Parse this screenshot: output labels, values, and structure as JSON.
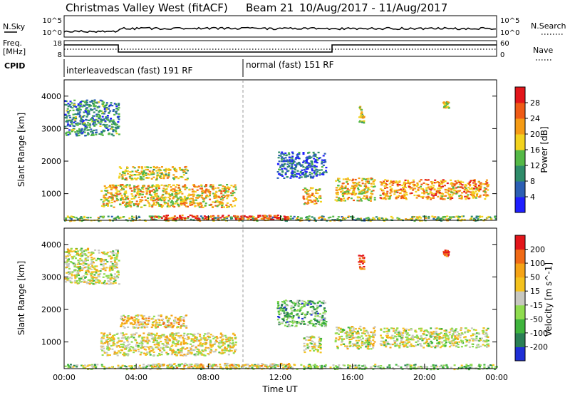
{
  "header": {
    "title": "Christmas Valley West (fitACF)",
    "beam": "Beam 21",
    "date_range": "10/Aug/2017 - 11/Aug/2017"
  },
  "top_panels": {
    "nsky_label": "N.Sky",
    "nsky_ticks": [
      "10^5",
      "10^0"
    ],
    "nsearch_label": "N.Search",
    "nsearch_ticks": [
      "10^5",
      "10^0"
    ],
    "freq_label_1": "Freq.",
    "freq_label_2": "[MHz]",
    "freq_ticks": [
      "18",
      "8"
    ],
    "nave_label": "Nave",
    "nave_ticks": [
      "60",
      "0"
    ],
    "cpid_label": "CPID",
    "cpid_modes": [
      {
        "text": "interleavedscan (fast) 191 RF",
        "start_hour": 0
      },
      {
        "text": "normal (fast) 151 RF",
        "start_hour": 10
      }
    ]
  },
  "x_ticks": [
    "00:00",
    "04:00",
    "08:00",
    "12:00",
    "16:00",
    "20:00",
    "00:00"
  ],
  "xlabel": "Time UT",
  "chart_data": [
    {
      "type": "heatmap",
      "ylabel": "Slant Range [km]",
      "y_ticks": [
        "4000",
        "3000",
        "2000",
        "1000"
      ],
      "xlim": [
        0,
        24
      ],
      "ylim": [
        180,
        4500
      ],
      "colorbar": {
        "label": "Power [dB]",
        "ticks": [
          "28",
          "24",
          "20",
          "16",
          "12",
          "8",
          "4"
        ],
        "colors": [
          "#1f1fff",
          "#2c5fb4",
          "#2f8c6a",
          "#55b947",
          "#f2d21e",
          "#f59b15",
          "#ef5b16",
          "#e3161b"
        ]
      },
      "regions": [
        {
          "x0": 0.0,
          "x1": 24.0,
          "y0": 180,
          "y1": 330,
          "level": 0.45
        },
        {
          "x0": 4.8,
          "x1": 12.5,
          "y0": 220,
          "y1": 360,
          "level": 0.9
        },
        {
          "x0": 2.0,
          "x1": 9.5,
          "y0": 600,
          "y1": 1300,
          "level": 0.6
        },
        {
          "x0": 3.0,
          "x1": 6.8,
          "y0": 1450,
          "y1": 1850,
          "level": 0.55
        },
        {
          "x0": 0.0,
          "x1": 3.0,
          "y0": 2800,
          "y1": 3900,
          "level": 0.3
        },
        {
          "x0": 11.8,
          "x1": 14.5,
          "y0": 1500,
          "y1": 2300,
          "level": 0.2
        },
        {
          "x0": 13.2,
          "x1": 14.2,
          "y0": 700,
          "y1": 1200,
          "level": 0.65
        },
        {
          "x0": 15.0,
          "x1": 17.2,
          "y0": 800,
          "y1": 1500,
          "level": 0.6
        },
        {
          "x0": 17.5,
          "x1": 23.5,
          "y0": 850,
          "y1": 1450,
          "level": 0.7
        },
        {
          "x0": 16.3,
          "x1": 16.6,
          "y0": 3200,
          "y1": 3700,
          "level": 0.5
        },
        {
          "x0": 21.0,
          "x1": 21.3,
          "y0": 3650,
          "y1": 3850,
          "level": 0.5
        }
      ]
    },
    {
      "type": "heatmap",
      "ylabel": "Slant Range [km]",
      "y_ticks": [
        "4000",
        "3000",
        "2000",
        "1000"
      ],
      "xlim": [
        0,
        24
      ],
      "ylim": [
        180,
        4500
      ],
      "colorbar": {
        "label": "Velocity [m s^-1]",
        "ticks": [
          "200",
          "100",
          "50",
          "15",
          "-15",
          "-50",
          "-100",
          "-200"
        ],
        "colors": [
          "#1f2fd6",
          "#2a7f55",
          "#3fb43d",
          "#8fdc4f",
          "#c8c8c0",
          "#f4c21e",
          "#f5a316",
          "#f06a16",
          "#e3161b"
        ]
      },
      "regions": [
        {
          "x0": 0.0,
          "x1": 24.0,
          "y0": 180,
          "y1": 330,
          "level": 0.4
        },
        {
          "x0": 4.8,
          "x1": 12.5,
          "y0": 220,
          "y1": 360,
          "level": 0.6
        },
        {
          "x0": 2.0,
          "x1": 9.5,
          "y0": 600,
          "y1": 1300,
          "level": 0.55
        },
        {
          "x0": 3.0,
          "x1": 6.8,
          "y0": 1450,
          "y1": 1850,
          "level": 0.6
        },
        {
          "x0": 0.0,
          "x1": 3.0,
          "y0": 2800,
          "y1": 3900,
          "level": 0.5
        },
        {
          "x0": 11.8,
          "x1": 14.5,
          "y0": 1500,
          "y1": 2300,
          "level": 0.3
        },
        {
          "x0": 13.2,
          "x1": 14.2,
          "y0": 700,
          "y1": 1200,
          "level": 0.5
        },
        {
          "x0": 15.0,
          "x1": 17.2,
          "y0": 800,
          "y1": 1500,
          "level": 0.5
        },
        {
          "x0": 17.5,
          "x1": 23.5,
          "y0": 850,
          "y1": 1450,
          "level": 0.5
        },
        {
          "x0": 16.3,
          "x1": 16.6,
          "y0": 3200,
          "y1": 3700,
          "level": 0.95
        },
        {
          "x0": 21.0,
          "x1": 21.3,
          "y0": 3650,
          "y1": 3850,
          "level": 0.95
        }
      ]
    }
  ]
}
